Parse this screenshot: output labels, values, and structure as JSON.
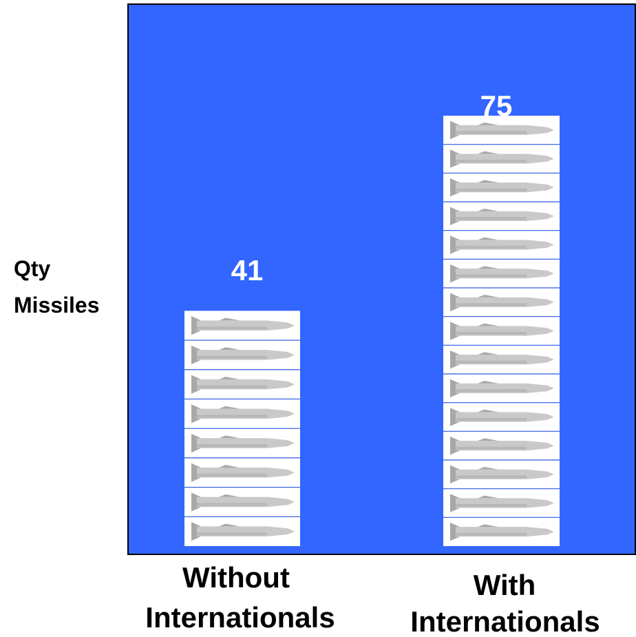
{
  "colors": {
    "plot_background": "#3366ff",
    "plot_border": "#000000",
    "bar_fill": "#ffffff",
    "bar_separator": "#2a56e0",
    "missile_body": "#c9c9c9",
    "missile_shade": "#a8a8a8",
    "value_text": "#ffffff",
    "label_text": "#000000"
  },
  "icons": {
    "bar_unit_icon": "missile-icon"
  },
  "chart_data": {
    "type": "bar",
    "style": "pictograph",
    "title": "",
    "xlabel": "",
    "ylabel": "Qty Missiles",
    "ylabel_lines": [
      "Qty",
      "Missiles"
    ],
    "categories": [
      "Without Internationals",
      "With Internationals"
    ],
    "category_lines": [
      [
        "Without",
        "Internationals"
      ],
      [
        "With",
        "Internationals"
      ]
    ],
    "values": [
      41,
      75
    ],
    "value_labels": [
      "41",
      "75"
    ],
    "ylim": [
      0,
      90
    ],
    "grid": false,
    "legend": "none"
  }
}
